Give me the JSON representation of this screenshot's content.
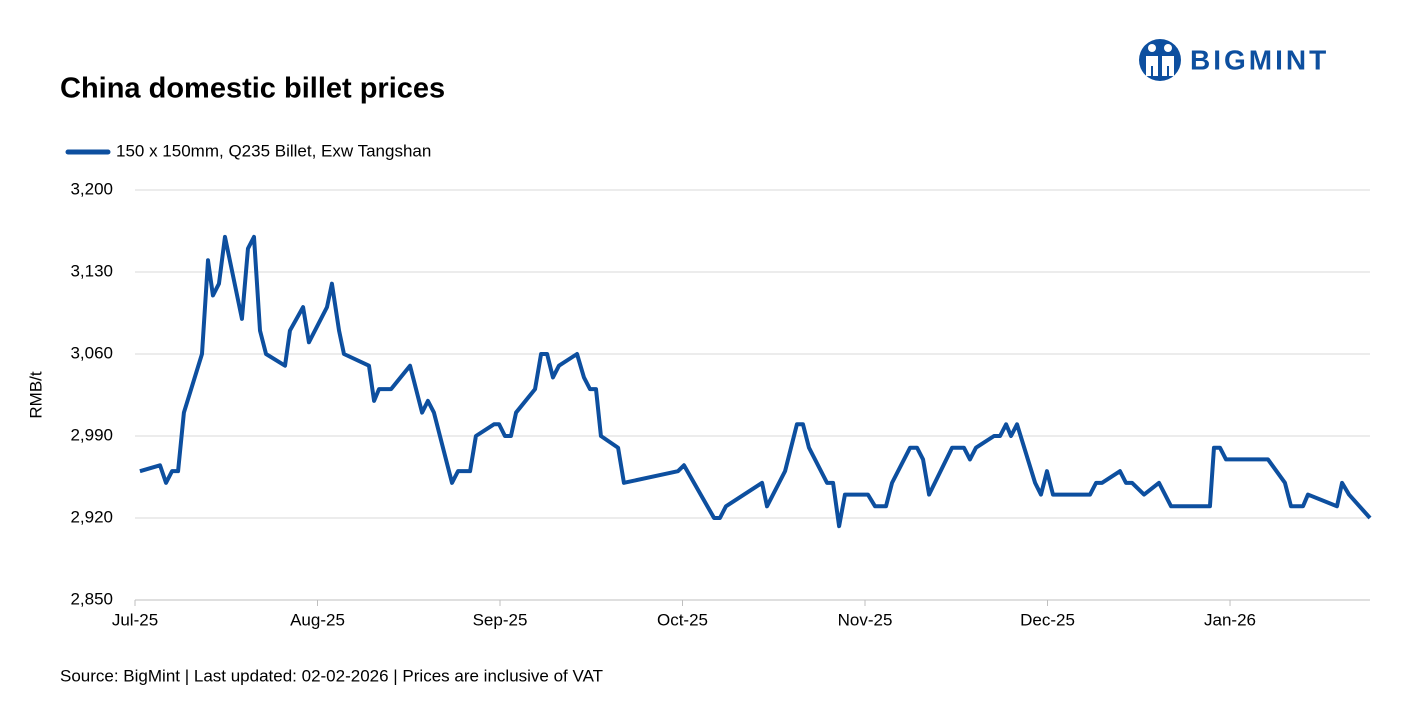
{
  "chart_data": {
    "type": "line",
    "title": "China domestic billet prices",
    "logo": "BIGMINT",
    "source": "Source: BigMint | Last updated: 02-02-2026 | Prices are inclusive of VAT",
    "y_label": "RMB/t",
    "grid": true,
    "legend": "top-left",
    "xlim": [
      0,
      6.767
    ],
    "xticks": [
      {
        "value": 0,
        "label": "Jul-25"
      },
      {
        "value": 1,
        "label": "Aug-25"
      },
      {
        "value": 2,
        "label": "Sep-25"
      },
      {
        "value": 3,
        "label": "Oct-25"
      },
      {
        "value": 4,
        "label": "Nov-25"
      },
      {
        "value": 5,
        "label": "Dec-25"
      },
      {
        "value": 6,
        "label": "Jan-26"
      }
    ],
    "ylim": [
      2850,
      3200
    ],
    "yticks": [
      {
        "value": 2850,
        "label": "2,850"
      },
      {
        "value": 2920,
        "label": "2,920"
      },
      {
        "value": 2990,
        "label": "2,990"
      },
      {
        "value": 3060,
        "label": "3,060"
      },
      {
        "value": 3130,
        "label": "3,130"
      },
      {
        "value": 3200,
        "label": "3,200"
      }
    ],
    "x": [
      0.027,
      0.137,
      0.17,
      0.203,
      0.236,
      0.268,
      0.367,
      0.4,
      0.427,
      0.46,
      0.493,
      0.586,
      0.619,
      0.652,
      0.685,
      0.718,
      0.822,
      0.849,
      0.921,
      0.953,
      1.052,
      1.079,
      1.118,
      1.145,
      1.282,
      1.31,
      1.337,
      1.403,
      1.507,
      1.573,
      1.605,
      1.638,
      1.737,
      1.77,
      1.836,
      1.868,
      1.967,
      1.995,
      2.027,
      2.06,
      2.088,
      2.192,
      2.225,
      2.258,
      2.29,
      2.323,
      2.422,
      2.46,
      2.493,
      2.526,
      2.553,
      2.647,
      2.679,
      2.975,
      3.008,
      3.173,
      3.205,
      3.238,
      3.436,
      3.463,
      3.562,
      3.627,
      3.66,
      3.693,
      3.792,
      3.825,
      3.858,
      3.89,
      4.016,
      4.055,
      4.115,
      4.148,
      4.247,
      4.285,
      4.318,
      4.351,
      4.477,
      4.542,
      4.575,
      4.608,
      4.707,
      4.74,
      4.773,
      4.8,
      4.833,
      4.932,
      4.964,
      4.997,
      5.03,
      5.233,
      5.266,
      5.299,
      5.397,
      5.43,
      5.463,
      5.529,
      5.611,
      5.677,
      5.89,
      5.912,
      5.945,
      5.978,
      6.208,
      6.301,
      6.334,
      6.4,
      6.427,
      6.586,
      6.614,
      6.652,
      6.767
    ],
    "series": [
      {
        "name": "150 x 150mm, Q235 Billet, Exw Tangshan",
        "color": "#0d4f9f",
        "values": [
          2960,
          2965,
          2950,
          2960,
          2960,
          3010,
          3060,
          3140,
          3110,
          3120,
          3160,
          3090,
          3150,
          3160,
          3080,
          3060,
          3050,
          3080,
          3100,
          3070,
          3100,
          3120,
          3080,
          3060,
          3050,
          3020,
          3030,
          3030,
          3050,
          3010,
          3020,
          3010,
          2950,
          2960,
          2960,
          2990,
          3000,
          3000,
          2990,
          2990,
          3010,
          3030,
          3060,
          3060,
          3040,
          3050,
          3060,
          3040,
          3030,
          3030,
          2990,
          2980,
          2950,
          2960,
          2965,
          2920,
          2920,
          2930,
          2950,
          2930,
          2960,
          3000,
          3000,
          2980,
          2950,
          2950,
          2913,
          2940,
          2940,
          2930,
          2930,
          2950,
          2980,
          2980,
          2970,
          2940,
          2980,
          2980,
          2970,
          2980,
          2990,
          2990,
          3000,
          2990,
          3000,
          2950,
          2940,
          2960,
          2940,
          2940,
          2950,
          2950,
          2960,
          2950,
          2950,
          2940,
          2950,
          2930,
          2930,
          2980,
          2980,
          2970,
          2970,
          2950,
          2930,
          2930,
          2940,
          2930,
          2950,
          2940,
          2920
        ]
      }
    ]
  }
}
